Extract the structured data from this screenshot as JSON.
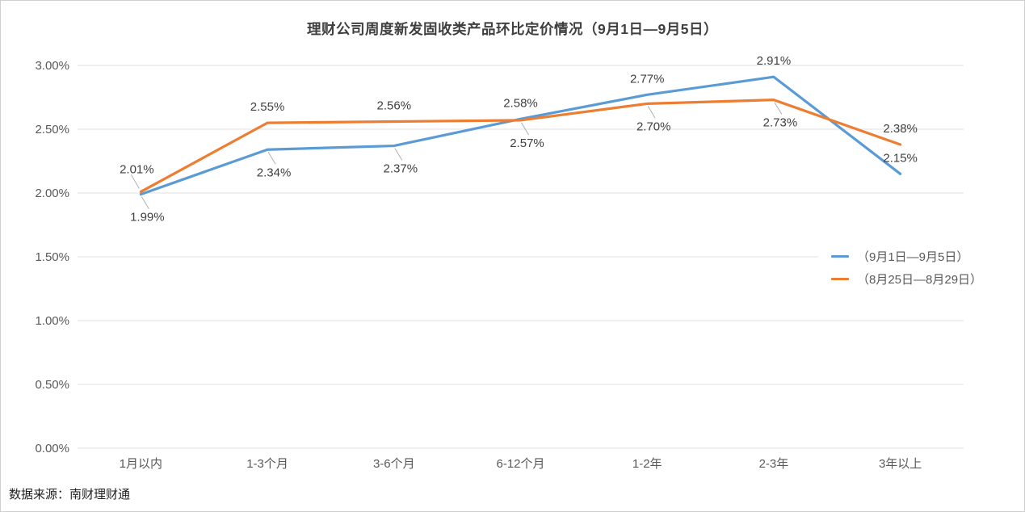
{
  "title": "理财公司周度新发固收类产品环比定价情况（9月1日—9月5日）",
  "source": "数据来源：南财理财通",
  "chart_data": {
    "type": "line",
    "title": "理财公司周度新发固收类产品环比定价情况（9月1日—9月5日）",
    "categories": [
      "1月以内",
      "1-3个月",
      "3-6个月",
      "6-12个月",
      "1-2年",
      "2-3年",
      "3年以上"
    ],
    "series": [
      {
        "name": "（9月1日—9月5日）",
        "color": "#5B9BD5",
        "values": [
          1.99,
          2.34,
          2.37,
          2.58,
          2.77,
          2.91,
          2.15
        ],
        "label_side": [
          "below",
          "below",
          "below",
          "above",
          "above",
          "above",
          "above"
        ],
        "label_leader": [
          true,
          true,
          true,
          false,
          false,
          false,
          false
        ]
      },
      {
        "name": "（8月25日—8月29日）",
        "color": "#ED7D31",
        "values": [
          2.01,
          2.55,
          2.56,
          2.57,
          2.7,
          2.73,
          2.38
        ],
        "label_side": [
          "above",
          "above",
          "above",
          "below",
          "below",
          "below",
          "above"
        ],
        "label_leader": [
          true,
          false,
          false,
          true,
          true,
          true,
          false
        ]
      }
    ],
    "y_ticks": [
      "3.00%",
      "2.50%",
      "2.00%",
      "1.50%",
      "1.00%",
      "0.50%",
      "0.00%"
    ],
    "ylim": [
      0,
      3
    ],
    "grid": true,
    "data_labels": true,
    "legend_position": "right"
  }
}
